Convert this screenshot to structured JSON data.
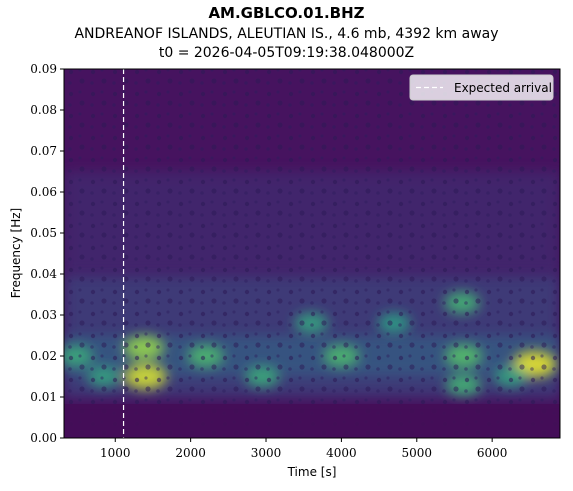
{
  "titles": {
    "station": "AM.GBLCO.01.BHZ",
    "event": "ANDREANOF ISLANDS, ALEUTIAN IS., 4.6 mb, 4392 km away",
    "origin": "t0 = 2026-04-05T09:19:38.048000Z"
  },
  "chart_data": {
    "type": "heatmap",
    "colormap": "viridis",
    "xlabel": "Time [s]",
    "ylabel": "Frequency [Hz]",
    "xlim": [
      320,
      6900
    ],
    "ylim": [
      0.0,
      0.09
    ],
    "xticks": [
      {
        "value": 1000,
        "label": "1000"
      },
      {
        "value": 2000,
        "label": "2000"
      },
      {
        "value": 3000,
        "label": "3000"
      },
      {
        "value": 4000,
        "label": "4000"
      },
      {
        "value": 5000,
        "label": "5000"
      },
      {
        "value": 6000,
        "label": "6000"
      }
    ],
    "yticks": [
      {
        "value": 0.0,
        "label": "0.00"
      },
      {
        "value": 0.01,
        "label": "0.01"
      },
      {
        "value": 0.02,
        "label": "0.02"
      },
      {
        "value": 0.03,
        "label": "0.03"
      },
      {
        "value": 0.04,
        "label": "0.04"
      },
      {
        "value": 0.05,
        "label": "0.05"
      },
      {
        "value": 0.06,
        "label": "0.06"
      },
      {
        "value": 0.07,
        "label": "0.07"
      },
      {
        "value": 0.08,
        "label": "0.08"
      },
      {
        "value": 0.09,
        "label": "0.09"
      }
    ],
    "expected_arrival": {
      "time": 1110,
      "label": "Expected arrival",
      "style": "dashed",
      "color": "#ffffff"
    },
    "legend_position": "top-right",
    "energy_peaks": [
      {
        "time": 1380,
        "freq": 0.022,
        "intensity": 0.75
      },
      {
        "time": 1400,
        "freq": 0.015,
        "intensity": 0.9
      },
      {
        "time": 6560,
        "freq": 0.018,
        "intensity": 0.95
      },
      {
        "time": 5620,
        "freq": 0.02,
        "intensity": 0.55
      },
      {
        "time": 5620,
        "freq": 0.013,
        "intensity": 0.45
      },
      {
        "time": 5600,
        "freq": 0.033,
        "intensity": 0.45
      },
      {
        "time": 2200,
        "freq": 0.02,
        "intensity": 0.5
      },
      {
        "time": 4000,
        "freq": 0.02,
        "intensity": 0.5
      },
      {
        "time": 2950,
        "freq": 0.015,
        "intensity": 0.4
      },
      {
        "time": 3600,
        "freq": 0.028,
        "intensity": 0.35
      },
      {
        "time": 480,
        "freq": 0.02,
        "intensity": 0.4
      },
      {
        "time": 850,
        "freq": 0.015,
        "intensity": 0.35
      },
      {
        "time": 6250,
        "freq": 0.015,
        "intensity": 0.35
      },
      {
        "time": 4700,
        "freq": 0.028,
        "intensity": 0.3
      }
    ]
  }
}
